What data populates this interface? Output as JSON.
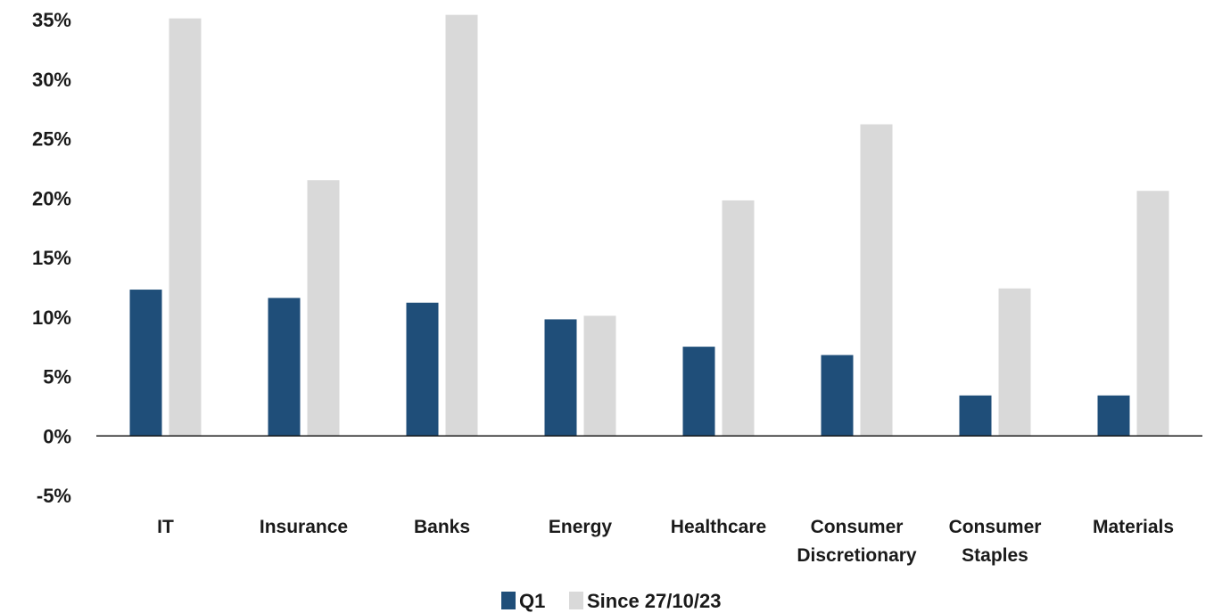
{
  "chart_data": {
    "type": "bar",
    "title": "",
    "xlabel": "",
    "ylabel": "",
    "ylim": [
      -5,
      35
    ],
    "yticks": [
      -5,
      0,
      5,
      10,
      15,
      20,
      25,
      30,
      35
    ],
    "ytick_format": "{v}%",
    "categories": [
      [
        "IT"
      ],
      [
        "Insurance"
      ],
      [
        "Banks"
      ],
      [
        "Energy"
      ],
      [
        "Healthcare"
      ],
      [
        "Consumer",
        "Discretionary"
      ],
      [
        "Consumer",
        "Staples"
      ],
      [
        "Materials"
      ]
    ],
    "series": [
      {
        "name": "Q1",
        "color": "#1f4e79",
        "values": [
          12.3,
          11.6,
          11.2,
          9.8,
          7.5,
          6.8,
          3.4,
          3.4
        ]
      },
      {
        "name": "Since 27/10/23",
        "color": "#d9d9d9",
        "values": [
          35.1,
          21.5,
          35.4,
          10.1,
          19.8,
          26.2,
          12.4,
          20.6
        ]
      }
    ],
    "grid": false,
    "legend_position": "bottom-center"
  }
}
